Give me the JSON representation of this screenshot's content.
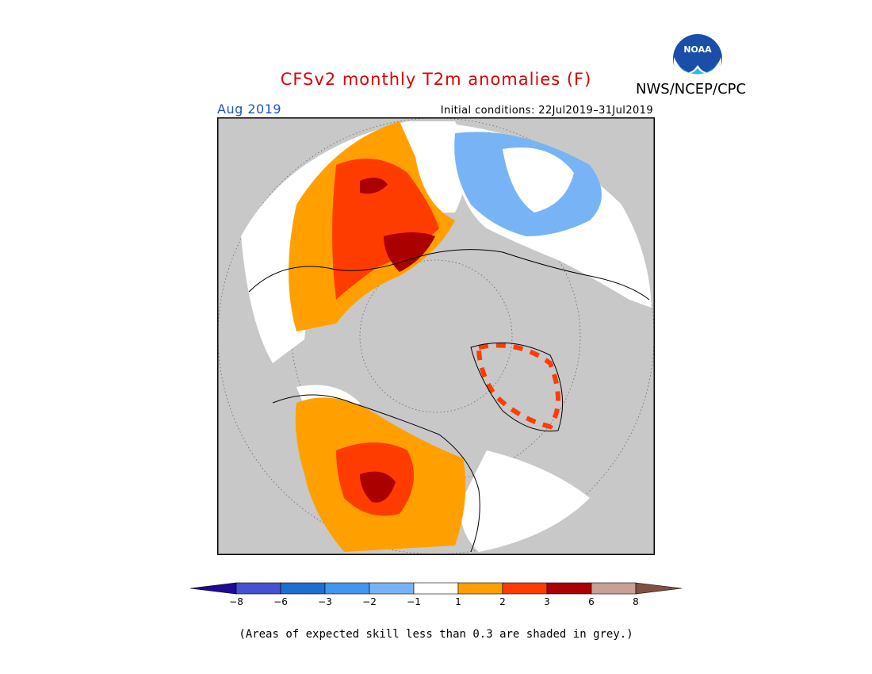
{
  "header": {
    "title": "CFSv2 monthly T2m anomalies (F)",
    "agency": "NWS/NCEP/CPC",
    "valid_month": "Aug 2019",
    "initial_conditions": "Initial conditions: 22Jul2019–31Jul2019",
    "logo_text": "NOAA",
    "title_color": "#dd0000",
    "valid_color": "#1e50c8"
  },
  "map": {
    "projection": "polar stereographic (north pole)",
    "background": "#c8c8c8",
    "frame": "#000000"
  },
  "legend": {
    "tick_labels": [
      "−8",
      "−6",
      "−3",
      "−2",
      "−1",
      "1",
      "2",
      "3",
      "6",
      "8"
    ],
    "colors": [
      "#1e0a96",
      "#4650d2",
      "#1e6ed2",
      "#4196f0",
      "#78b4f5",
      "#ffffff",
      "#ffa000",
      "#ff3c00",
      "#aa0000",
      "#c8a096",
      "#805040"
    ]
  },
  "footnote": "(Areas of expected skill less than 0.3 are shaded in grey.)"
}
